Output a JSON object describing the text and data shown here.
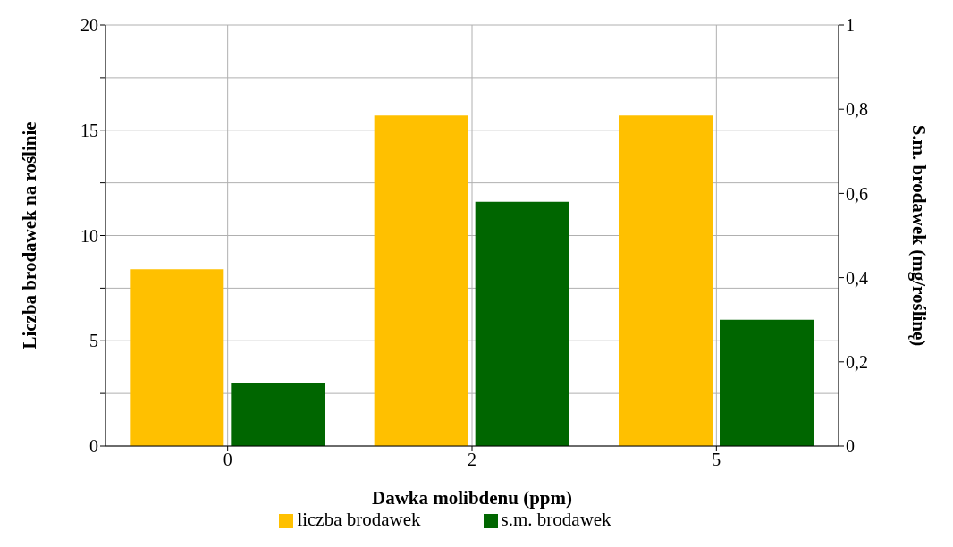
{
  "chart_data": {
    "type": "bar",
    "xlabel": "Dawka molibdenu (ppm)",
    "ylabel": "Liczba brodawek na roślinie",
    "y2label": "S.m. brodawek (mg/roślinę)",
    "categories": [
      "0",
      "2",
      "5"
    ],
    "series": [
      {
        "name": "liczba brodawek",
        "color": "#ffc000",
        "values": [
          8.4,
          15.7,
          15.7
        ]
      },
      {
        "name": "s.m. brodawek",
        "color": "#006600",
        "values": [
          0.15,
          0.58,
          0.3
        ],
        "axis": "y2"
      }
    ],
    "ylim": [
      0,
      20
    ],
    "yticks": [
      0,
      {
        "value": 2.5,
        "label": null
      },
      5,
      {
        "value": 7.5,
        "label": null
      },
      10,
      {
        "value": 12.5,
        "label": null
      },
      15,
      {
        "value": 17.5,
        "label": null
      },
      20
    ],
    "y2lim": [
      0,
      1
    ],
    "y2ticks": [
      {
        "value": 0,
        "label": "0"
      },
      {
        "value": 0.2,
        "label": "0,2"
      },
      {
        "value": 0.4,
        "label": "0,4"
      },
      {
        "value": 0.6,
        "label": "0,6"
      },
      {
        "value": 0.8,
        "label": "0,8"
      },
      {
        "value": 1,
        "label": "1"
      }
    ],
    "grid": true,
    "legend": "bottom"
  }
}
